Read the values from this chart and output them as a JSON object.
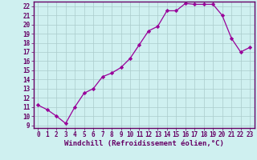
{
  "x": [
    0,
    1,
    2,
    3,
    4,
    5,
    6,
    7,
    8,
    9,
    10,
    11,
    12,
    13,
    14,
    15,
    16,
    17,
    18,
    19,
    20,
    21,
    22,
    23
  ],
  "y": [
    11.2,
    10.7,
    10.0,
    9.2,
    11.0,
    12.5,
    13.0,
    14.3,
    14.7,
    15.3,
    16.3,
    17.8,
    19.3,
    19.8,
    21.5,
    21.5,
    22.3,
    22.2,
    22.2,
    22.2,
    21.0,
    18.5,
    17.0,
    17.5
  ],
  "line_color": "#990099",
  "marker": "D",
  "marker_size": 2.2,
  "bg_color": "#cff0f0",
  "grid_color": "#aacccc",
  "xlabel": "Windchill (Refroidissement éolien,°C)",
  "ylim_min": 9,
  "ylim_max": 22.5,
  "xlim_min": -0.5,
  "xlim_max": 23.5,
  "yticks": [
    9,
    10,
    11,
    12,
    13,
    14,
    15,
    16,
    17,
    18,
    19,
    20,
    21,
    22
  ],
  "xticks": [
    0,
    1,
    2,
    3,
    4,
    5,
    6,
    7,
    8,
    9,
    10,
    11,
    12,
    13,
    14,
    15,
    16,
    17,
    18,
    19,
    20,
    21,
    22,
    23
  ],
  "tick_fontsize": 5.5,
  "xlabel_fontsize": 6.5,
  "line_width": 0.9,
  "border_color": "#660066"
}
